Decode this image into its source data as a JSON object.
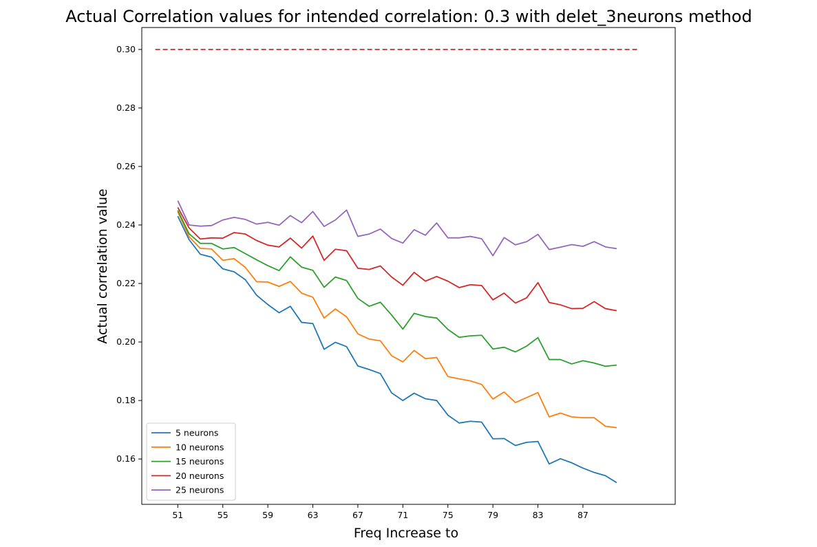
{
  "chart_data": {
    "type": "line",
    "title": "Actual Correlation values for intended correlation:  0.3 with delet_3neurons method",
    "xlabel": "Freq Increase to",
    "ylabel": "Actual correlation value",
    "xlim": [
      47.8,
      95.2
    ],
    "ylim": [
      0.1445,
      0.3075
    ],
    "xticks": [
      51,
      55,
      59,
      63,
      67,
      71,
      75,
      79,
      83,
      87
    ],
    "yticks": [
      0.16,
      0.18,
      0.2,
      0.22,
      0.24,
      0.26,
      0.28,
      0.3
    ],
    "ytick_labels": [
      "0.16",
      "0.18",
      "0.20",
      "0.22",
      "0.24",
      "0.26",
      "0.28",
      "0.30"
    ],
    "grid": false,
    "legend_position": "lower-left",
    "x": [
      51,
      52,
      53,
      54,
      55,
      56,
      57,
      58,
      59,
      60,
      61,
      62,
      63,
      64,
      65,
      66,
      67,
      68,
      69,
      70,
      71,
      72,
      73,
      74,
      75,
      76,
      77,
      78,
      79,
      80,
      81,
      82,
      83,
      84,
      85,
      86,
      87,
      88,
      89,
      90
    ],
    "reference_line": {
      "y": 0.3,
      "x_range": [
        49,
        92
      ],
      "color": "#d62728",
      "style": "dashed"
    },
    "series": [
      {
        "name": "5 neurons",
        "color": "#1f77b4",
        "values": [
          0.243,
          0.235,
          0.23,
          0.229,
          0.225,
          0.224,
          0.2213,
          0.216,
          0.2128,
          0.21,
          0.2122,
          0.2067,
          0.2063,
          0.1975,
          0.1999,
          0.1984,
          0.1918,
          0.1906,
          0.1892,
          0.1826,
          0.18,
          0.1825,
          0.1806,
          0.18,
          0.175,
          0.1723,
          0.1729,
          0.1726,
          0.1669,
          0.167,
          0.1646,
          0.1657,
          0.166,
          0.1583,
          0.1601,
          0.1587,
          0.1569,
          0.1554,
          0.1543,
          0.1519
        ]
      },
      {
        "name": "10 neurons",
        "color": "#ff7f0e",
        "values": [
          0.2445,
          0.236,
          0.232,
          0.2318,
          0.2279,
          0.2285,
          0.2255,
          0.2206,
          0.2205,
          0.219,
          0.2207,
          0.2167,
          0.2153,
          0.2082,
          0.2113,
          0.2086,
          0.2028,
          0.201,
          0.2004,
          0.1953,
          0.1932,
          0.1971,
          0.1943,
          0.1947,
          0.1882,
          0.1874,
          0.1867,
          0.1855,
          0.1805,
          0.1829,
          0.1793,
          0.181,
          0.1827,
          0.1744,
          0.1757,
          0.1744,
          0.1741,
          0.1741,
          0.1712,
          0.1707
        ]
      },
      {
        "name": "15 neurons",
        "color": "#2ca02c",
        "values": [
          0.245,
          0.237,
          0.2337,
          0.2337,
          0.2318,
          0.2323,
          0.2302,
          0.2281,
          0.2261,
          0.2244,
          0.2291,
          0.2256,
          0.2245,
          0.2187,
          0.2222,
          0.221,
          0.2149,
          0.2122,
          0.2136,
          0.2092,
          0.2044,
          0.2098,
          0.2087,
          0.2082,
          0.2043,
          0.2016,
          0.2021,
          0.2023,
          0.1976,
          0.1982,
          0.1966,
          0.1986,
          0.2015,
          0.194,
          0.194,
          0.1925,
          0.1936,
          0.1928,
          0.1917,
          0.1921
        ]
      },
      {
        "name": "20 neurons",
        "color": "#d62728",
        "values": [
          0.246,
          0.239,
          0.2352,
          0.2356,
          0.2355,
          0.2374,
          0.2369,
          0.2347,
          0.2331,
          0.2325,
          0.2355,
          0.2321,
          0.2362,
          0.2279,
          0.2317,
          0.2312,
          0.2252,
          0.2248,
          0.226,
          0.2222,
          0.2194,
          0.2238,
          0.2208,
          0.2224,
          0.2208,
          0.2186,
          0.2196,
          0.2193,
          0.2144,
          0.2167,
          0.2133,
          0.2151,
          0.2203,
          0.2135,
          0.2127,
          0.2114,
          0.2115,
          0.2138,
          0.2114,
          0.2107
        ]
      },
      {
        "name": "25 neurons",
        "color": "#9467bd",
        "values": [
          0.2483,
          0.24,
          0.2396,
          0.2398,
          0.2417,
          0.2426,
          0.2419,
          0.2403,
          0.2409,
          0.2399,
          0.2432,
          0.2408,
          0.2446,
          0.2395,
          0.2417,
          0.2451,
          0.2361,
          0.2369,
          0.2386,
          0.2354,
          0.2338,
          0.2384,
          0.2365,
          0.2407,
          0.2356,
          0.2356,
          0.2361,
          0.2353,
          0.2295,
          0.2357,
          0.2332,
          0.2343,
          0.2368,
          0.2316,
          0.2324,
          0.2333,
          0.2327,
          0.2343,
          0.2325,
          0.2319
        ]
      }
    ]
  }
}
